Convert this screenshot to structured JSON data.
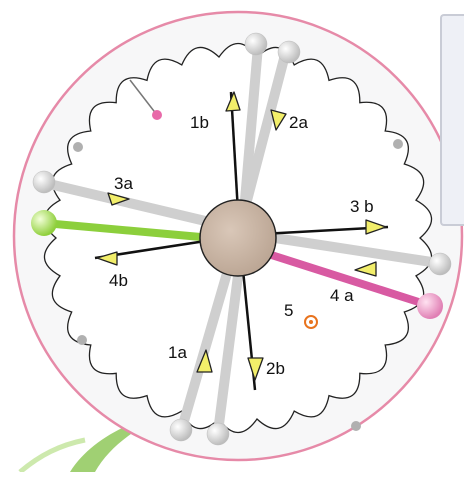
{
  "diagram": {
    "labels": {
      "l1a": "1a",
      "l1b": "1b",
      "l2a": "2a",
      "l2b": "2b",
      "l3a": "3a",
      "l3b": "3 b",
      "l4a": "4 a",
      "l4b": "4b",
      "l5": "5"
    },
    "colors": {
      "disc_border": "#e68aa8",
      "disc_fill": "#f7f7f8",
      "center_hub": "#c8b4a4",
      "gray_rod": "#cfcfcf",
      "black_rod": "#111111",
      "green_rod": "#8ccf3c",
      "pink_rod": "#d85aa2",
      "arrow_fill": "#f2ee6a",
      "spiral": "#e8731e",
      "leaf_green": "#8fc85a"
    }
  }
}
